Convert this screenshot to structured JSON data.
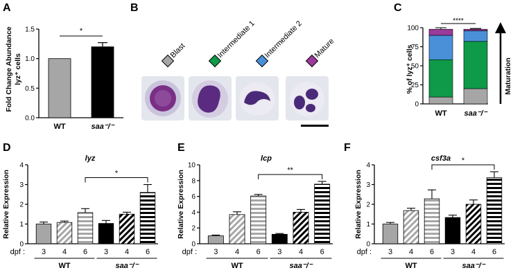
{
  "panel_letters": [
    "A",
    "B",
    "C",
    "D",
    "E",
    "F"
  ],
  "colors": {
    "gray": "#a6a6a6",
    "black": "#000000",
    "green": "#0e9a48",
    "blue": "#4a90d9",
    "purple": "#9b3a9b"
  },
  "chart_data": [
    {
      "panel": "A",
      "type": "bar",
      "ylabel_line1": "Fold Change Abundance",
      "ylabel_line2": "lyz⁺ cells",
      "ylim": [
        0,
        1.5
      ],
      "yticks": [
        "0.0",
        "0.5",
        "1.0",
        "1.5"
      ],
      "categories": [
        "WT",
        "saa⁻/⁻"
      ],
      "values": [
        1.0,
        1.2
      ],
      "errors": [
        0,
        0.07
      ],
      "fills": [
        "gray",
        "black"
      ],
      "significance": "*"
    },
    {
      "panel": "C",
      "type": "bar",
      "stacked": true,
      "ylabel": "% of lyz⁺ cells",
      "ylim": [
        0,
        100
      ],
      "yticks": [
        "0",
        "25",
        "50",
        "75",
        "100"
      ],
      "categories": [
        "WT",
        "saa⁻/⁻"
      ],
      "series": [
        {
          "name": "Blast",
          "color": "gray",
          "values": [
            9,
            20
          ],
          "errors": [
            2,
            3
          ]
        },
        {
          "name": "Intermediate 1",
          "color": "green",
          "values": [
            49,
            62
          ],
          "errors": [
            2,
            2
          ]
        },
        {
          "name": "Intermediate 2",
          "color": "blue",
          "values": [
            32,
            14
          ],
          "errors": [
            2,
            2
          ]
        },
        {
          "name": "Mature",
          "color": "purple",
          "values": [
            8,
            2
          ],
          "errors": [
            2,
            1
          ]
        }
      ],
      "significance": "****",
      "side_label": "Maturation"
    },
    {
      "panel": "D",
      "type": "bar",
      "title": "lyz",
      "ylabel": "Relative Expression",
      "ylim": [
        0,
        4
      ],
      "yticks": [
        "0",
        "1",
        "2",
        "3",
        "4"
      ],
      "x_prefix": "dpf :",
      "categories": [
        "3",
        "4",
        "6",
        "3",
        "4",
        "6"
      ],
      "groups": [
        "WT",
        "saa⁻/⁻"
      ],
      "values": [
        1.0,
        1.08,
        1.58,
        1.03,
        1.5,
        2.6
      ],
      "errors": [
        0.1,
        0.07,
        0.2,
        0.15,
        0.1,
        0.4
      ],
      "patterns": [
        "solid-gray",
        "diag-gray",
        "hstripe-gray",
        "solid-black",
        "diag-black",
        "hstripe-black"
      ],
      "significance": "*"
    },
    {
      "panel": "E",
      "type": "bar",
      "title": "lcp",
      "ylabel": "Relative Expression",
      "ylim": [
        0,
        10
      ],
      "yticks": [
        "0",
        "2",
        "4",
        "6",
        "8",
        "10"
      ],
      "x_prefix": "dpf :",
      "categories": [
        "3",
        "4",
        "6",
        "3",
        "4",
        "6"
      ],
      "groups": [
        "WT",
        "saa⁻/⁻"
      ],
      "values": [
        1.0,
        3.7,
        6.05,
        1.2,
        4.0,
        7.55
      ],
      "errors": [
        0.1,
        0.35,
        0.2,
        0.1,
        0.35,
        0.35
      ],
      "patterns": [
        "solid-gray",
        "diag-gray",
        "hstripe-gray",
        "solid-black",
        "diag-black",
        "hstripe-black"
      ],
      "significance": "**"
    },
    {
      "panel": "F",
      "type": "bar",
      "title": "csf3a",
      "ylabel": "Relative Expression",
      "ylim": [
        0,
        4
      ],
      "yticks": [
        "0",
        "1",
        "2",
        "3",
        "4"
      ],
      "x_prefix": "dpf :",
      "categories": [
        "3",
        "4",
        "6",
        "3",
        "4",
        "6"
      ],
      "groups": [
        "WT",
        "saa⁻/⁻"
      ],
      "values": [
        1.0,
        1.68,
        2.28,
        1.33,
        2.0,
        3.35
      ],
      "errors": [
        0.08,
        0.12,
        0.45,
        0.12,
        0.22,
        0.3
      ],
      "patterns": [
        "solid-gray",
        "diag-gray",
        "hstripe-gray",
        "solid-black",
        "diag-black",
        "hstripe-black"
      ],
      "significance": "*"
    }
  ],
  "panel_b": {
    "stages": [
      {
        "label": "Blast",
        "color": "gray"
      },
      {
        "label": "Intermediate 1",
        "color": "green"
      },
      {
        "label": "Intermediate 2",
        "color": "blue"
      },
      {
        "label": "Mature",
        "color": "purple"
      }
    ]
  }
}
